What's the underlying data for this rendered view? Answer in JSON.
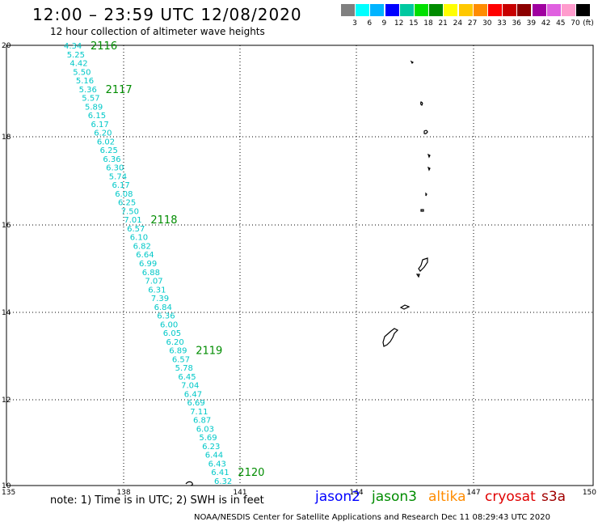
{
  "title": "12:00 – 23:59 UTC 12/08/2020",
  "subtitle": "12 hour collection of altimeter wave heights",
  "color_scale": {
    "colors": [
      "#808080",
      "#00ffff",
      "#00b4ff",
      "#0000ff",
      "#00c8a0",
      "#00e000",
      "#008c00",
      "#ffff00",
      "#ffc800",
      "#ff8c00",
      "#ff0000",
      "#c80000",
      "#8c0000",
      "#a000a0",
      "#e060e0",
      "#ff9ccd",
      "#000000"
    ],
    "labels": [
      "3",
      "6",
      "9",
      "12",
      "15",
      "18",
      "21",
      "24",
      "27",
      "30",
      "33",
      "36",
      "39",
      "42",
      "45",
      "70"
    ],
    "unit": "(ft)"
  },
  "axes": {
    "lat_ticks": [
      "20",
      "18",
      "16",
      "14",
      "12",
      "10"
    ],
    "lon_ticks": [
      "135",
      "138",
      "141",
      "144",
      "147",
      "150"
    ]
  },
  "swh_values": [
    "4.34",
    "5.25",
    "4.42",
    "5.50",
    "5.16",
    "5.36",
    "5.57",
    "5.89",
    "6.15",
    "6.17",
    "6.20",
    "6.02",
    "6.25",
    "6.36",
    "6.30",
    "5.74",
    "6.17",
    "6.08",
    "6.25",
    "7.50",
    "7.01",
    "6.57",
    "6.10",
    "6.82",
    "6.64",
    "6.99",
    "6.88",
    "7.07",
    "6.31",
    "7.39",
    "6.84",
    "6.36",
    "6.00",
    "6.05",
    "6.20",
    "6.89",
    "6.57",
    "5.78",
    "6.45",
    "7.04",
    "6.47",
    "6.69",
    "7.11",
    "6.87",
    "6.03",
    "5.69",
    "6.23",
    "6.44",
    "6.43",
    "6.41",
    "6.32"
  ],
  "orbits": [
    {
      "label": "2116"
    },
    {
      "label": "2117"
    },
    {
      "label": "2118"
    },
    {
      "label": "2119"
    },
    {
      "label": "2120"
    }
  ],
  "note": "note:  1) Time is in UTC; 2) SWH is in feet",
  "satellites": [
    {
      "name": "jason2",
      "color": "#0000ff"
    },
    {
      "name": "jason3",
      "color": "#008c00"
    },
    {
      "name": "altika",
      "color": "#ff8c00"
    },
    {
      "name": "cryosat",
      "color": "#e00000"
    },
    {
      "name": "s3a",
      "color": "#a00000"
    }
  ],
  "credit": "NOAA/NESDIS Center for Satellite Applications and Research    Dec 11 08:29:43 UTC 2020"
}
